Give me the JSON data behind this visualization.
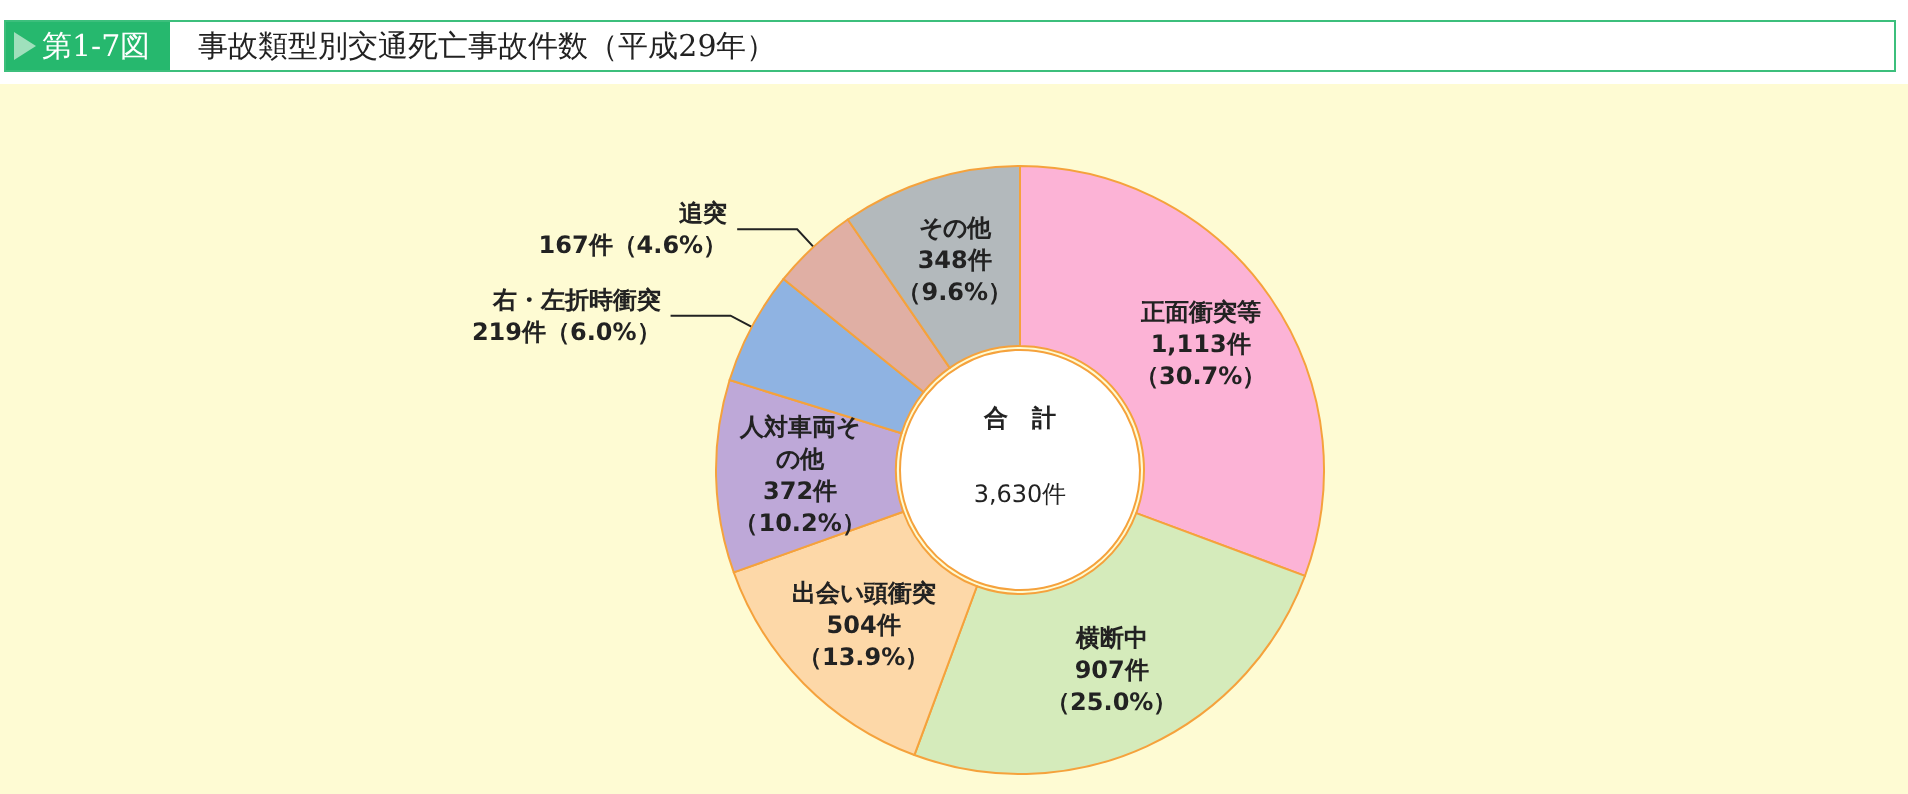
{
  "chart_data": {
    "type": "donut",
    "title": "第1-7図",
    "subtitle": "事故類型別交通死亡事故件数（平成29年）",
    "categories": [
      "正面衝突等",
      "横断中",
      "出会い頭衝突",
      "人対車両その他",
      "右・左折時衝突",
      "追突",
      "その他"
    ],
    "values": [
      1113,
      907,
      504,
      372,
      219,
      167,
      348
    ],
    "colors": [
      "#fcb3d6",
      "#d5ebbb",
      "#fdd8a8",
      "#bea8d8",
      "#8fb3e2",
      "#e0afa4",
      "#b3b9bc"
    ],
    "value_labels": [
      "1,113件（30.7%）",
      "907件（25.0%）",
      "504件（13.9%）",
      "372件（10.2%）",
      "219件（6.0%）",
      "167件（4.6%）",
      "348件（9.6%）"
    ],
    "annotations": [
      "合　計",
      "3,630件"
    ]
  }
}
